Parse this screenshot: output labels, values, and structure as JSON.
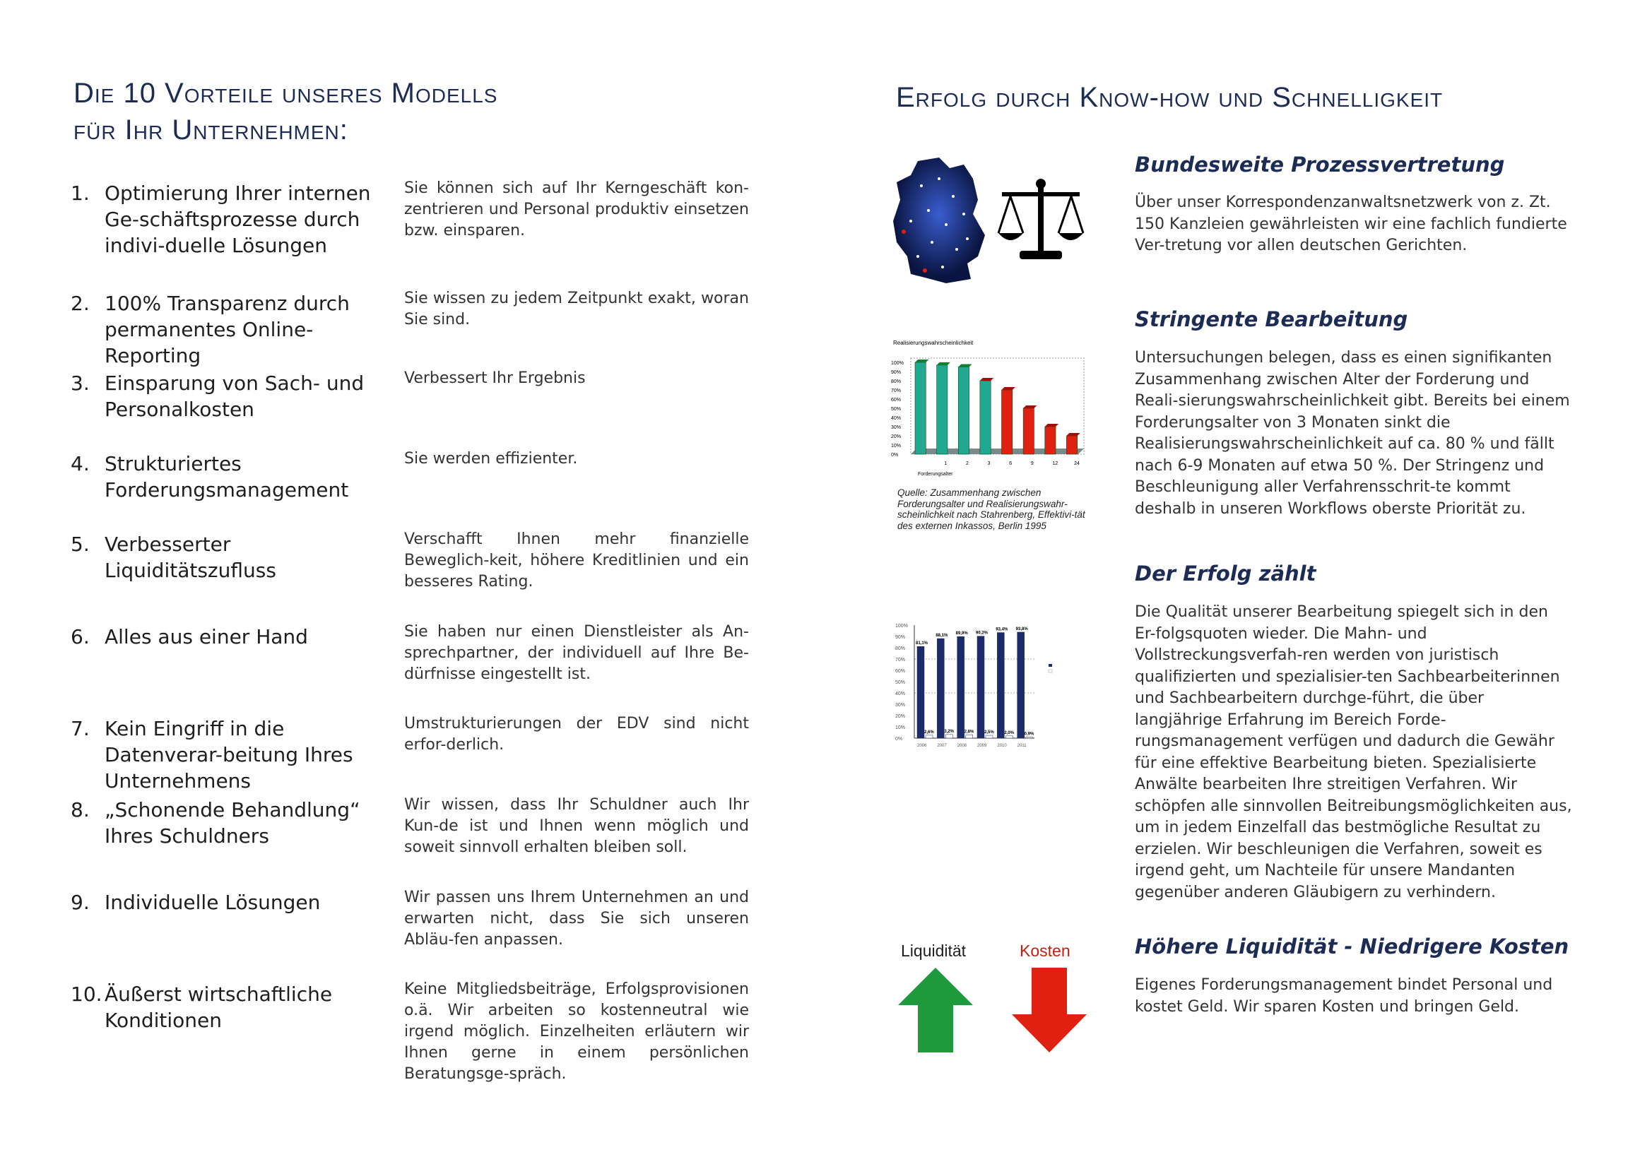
{
  "left": {
    "heading_line1": "Die 10 Vorteile unseres Modells",
    "heading_line2": "für Ihr Unternehmen:",
    "items": [
      {
        "num": "1.",
        "title": "Optimierung Ihrer internen Ge-schäftsprozesse durch indivi-duelle Lösungen",
        "desc": "Sie können sich auf Ihr Kerngeschäft kon-zentrieren und Personal produktiv einsetzen bzw. einsparen."
      },
      {
        "num": "2.",
        "title": "100% Transparenz durch permanentes Online-Reporting",
        "desc": "Sie wissen zu jedem Zeitpunkt exakt, woran Sie sind."
      },
      {
        "num": "3.",
        "title": "Einsparung von Sach- und Personalkosten",
        "desc": "Verbessert Ihr Ergebnis"
      },
      {
        "num": "4.",
        "title": "Strukturiertes Forderungsmanagement",
        "desc": "Sie werden effizienter."
      },
      {
        "num": "5.",
        "title": "Verbesserter Liquiditätszufluss",
        "desc": "Verschafft Ihnen mehr finanzielle Beweglich-keit, höhere Kreditlinien und ein besseres Rating."
      },
      {
        "num": "6.",
        "title": "Alles aus einer Hand",
        "desc": "Sie haben nur einen Dienstleister als An-sprechpartner, der individuell auf Ihre Be-dürfnisse eingestellt ist."
      },
      {
        "num": "7.",
        "title": "Kein Eingriff in die Datenverar-beitung Ihres Unternehmens",
        "desc": "Umstrukturierungen der EDV sind nicht erfor-derlich."
      },
      {
        "num": "8.",
        "title": "„Schonende Behandlung“ Ihres Schuldners",
        "desc": "Wir wissen, dass Ihr Schuldner auch Ihr Kun-de ist und Ihnen wenn möglich und soweit sinnvoll erhalten bleiben soll."
      },
      {
        "num": "9.",
        "title": "Individuelle Lösungen",
        "desc": "Wir passen uns Ihrem Unternehmen an und erwarten nicht, dass Sie sich unseren Abläu-fen anpassen."
      },
      {
        "num": "10.",
        "title": "Äußerst wirtschaftliche Konditionen",
        "desc": "Keine Mitgliedsbeiträge, Erfolgsprovisionen o.ä. Wir arbeiten so kostenneutral wie irgend möglich. Einzelheiten erläutern wir Ihnen gerne in einem persönlichen Beratungsge-spräch."
      }
    ]
  },
  "right": {
    "heading": "Erfolg durch Know-how und Schnelligkeit",
    "sections": [
      {
        "title": "Bundesweite Prozessvertretung",
        "text": "Über unser Korrespondenzanwaltsnetzwerk von z. Zt. 150 Kanzleien gewährleisten wir eine fachlich fundierte Ver-tretung vor allen deutschen Gerichten."
      },
      {
        "title": "Stringente Bearbeitung",
        "text": "Untersuchungen belegen, dass es einen signifikanten Zusammenhang zwischen Alter der Forderung und Reali-sierungswahrscheinlichkeit gibt. Bereits bei einem Forderungsalter von 3 Monaten sinkt die Realisierungswahrscheinlichkeit auf ca. 80 % und fällt nach 6-9 Monaten auf etwa 50 %. Der Stringenz und Beschleunigung aller Verfahrensschrit-te kommt deshalb in unseren Workflows oberste Priorität zu."
      },
      {
        "title": "Der Erfolg zählt",
        "text": "Die Qualität unserer Bearbeitung spiegelt sich in den Er-folgsquoten wieder. Die Mahn- und Vollstreckungsverfah-ren werden von juristisch qualifizierten und spezialisier-ten Sachbearbeiterinnen und Sachbearbeitern durchge-führt, die über langjährige Erfahrung im Bereich Forde-rungsmanagement verfügen und dadurch die Gewähr für eine effektive Bearbeitung bieten. Spezialisierte Anwälte bearbeiten Ihre streitigen Verfahren. Wir schöpfen alle sinnvollen Beitreibungsmöglichkeiten aus, um in jedem Einzelfall das bestmögliche Resultat zu erzielen. Wir beschleunigen die Verfahren, soweit es irgend geht, um Nachteile für unsere Mandanten gegenüber anderen Gläubigern zu verhindern."
      },
      {
        "title": "Höhere Liquidität - Niedrigere Kosten",
        "text": "Eigenes Forderungsmanagement bindet Personal und kostet Geld. Wir sparen Kosten und bringen Geld."
      }
    ],
    "caption": "Quelle: Zusammenhang zwischen Forderungsalter und Realisierungswahr-scheinlichkeit nach Stahrenberg, Effektivi-tät des externen Inkassos, Berlin 1995",
    "arrows": {
      "up_label": "Liquidität",
      "down_label": "Kosten",
      "up_color": "#1e9a3c",
      "down_color": "#e02010"
    }
  },
  "chart_data": [
    {
      "type": "bar",
      "title": "Realisierungswahrscheinlichkeit",
      "xlabel": "Forderungsalter",
      "categories": [
        "",
        "1",
        "2",
        "3",
        "6",
        "9",
        "12",
        "24"
      ],
      "values": [
        100,
        97,
        95,
        80,
        70,
        50,
        30,
        20
      ],
      "ylim": [
        0,
        100
      ],
      "yticks": [
        "0%",
        "10%",
        "20%",
        "30%",
        "40%",
        "50%",
        "60%",
        "70%",
        "80%",
        "90%",
        "100%"
      ],
      "colors": [
        "#20a890",
        "#20a890",
        "#20a890",
        "#20a890",
        "#e02010",
        "#e02010",
        "#e02010",
        "#e02010"
      ]
    },
    {
      "type": "bar",
      "categories": [
        "2006",
        "2007",
        "2008",
        "2009",
        "2010",
        "2011"
      ],
      "series": [
        {
          "values": [
            81.1,
            88.1,
            89.9,
            90.2,
            93.4,
            93.8
          ],
          "labels": [
            "81,1%",
            "88,1%",
            "89,9%",
            "90,2%",
            "93,4%",
            "93,8%"
          ],
          "color": "#1c2a6a"
        },
        {
          "values": [
            2.6,
            3.2,
            2.8,
            2.5,
            2.0,
            0.9
          ],
          "labels": [
            "2,6%",
            "3,2%",
            "2,8%",
            "2,5%",
            "2,0%",
            "0,9%"
          ],
          "color": "#ffffff"
        }
      ],
      "ylim": [
        0,
        100
      ],
      "yticks": [
        "0%",
        "10%",
        "20%",
        "30%",
        "40%",
        "50%",
        "60%",
        "70%",
        "80%",
        "90%",
        "100%"
      ]
    }
  ]
}
